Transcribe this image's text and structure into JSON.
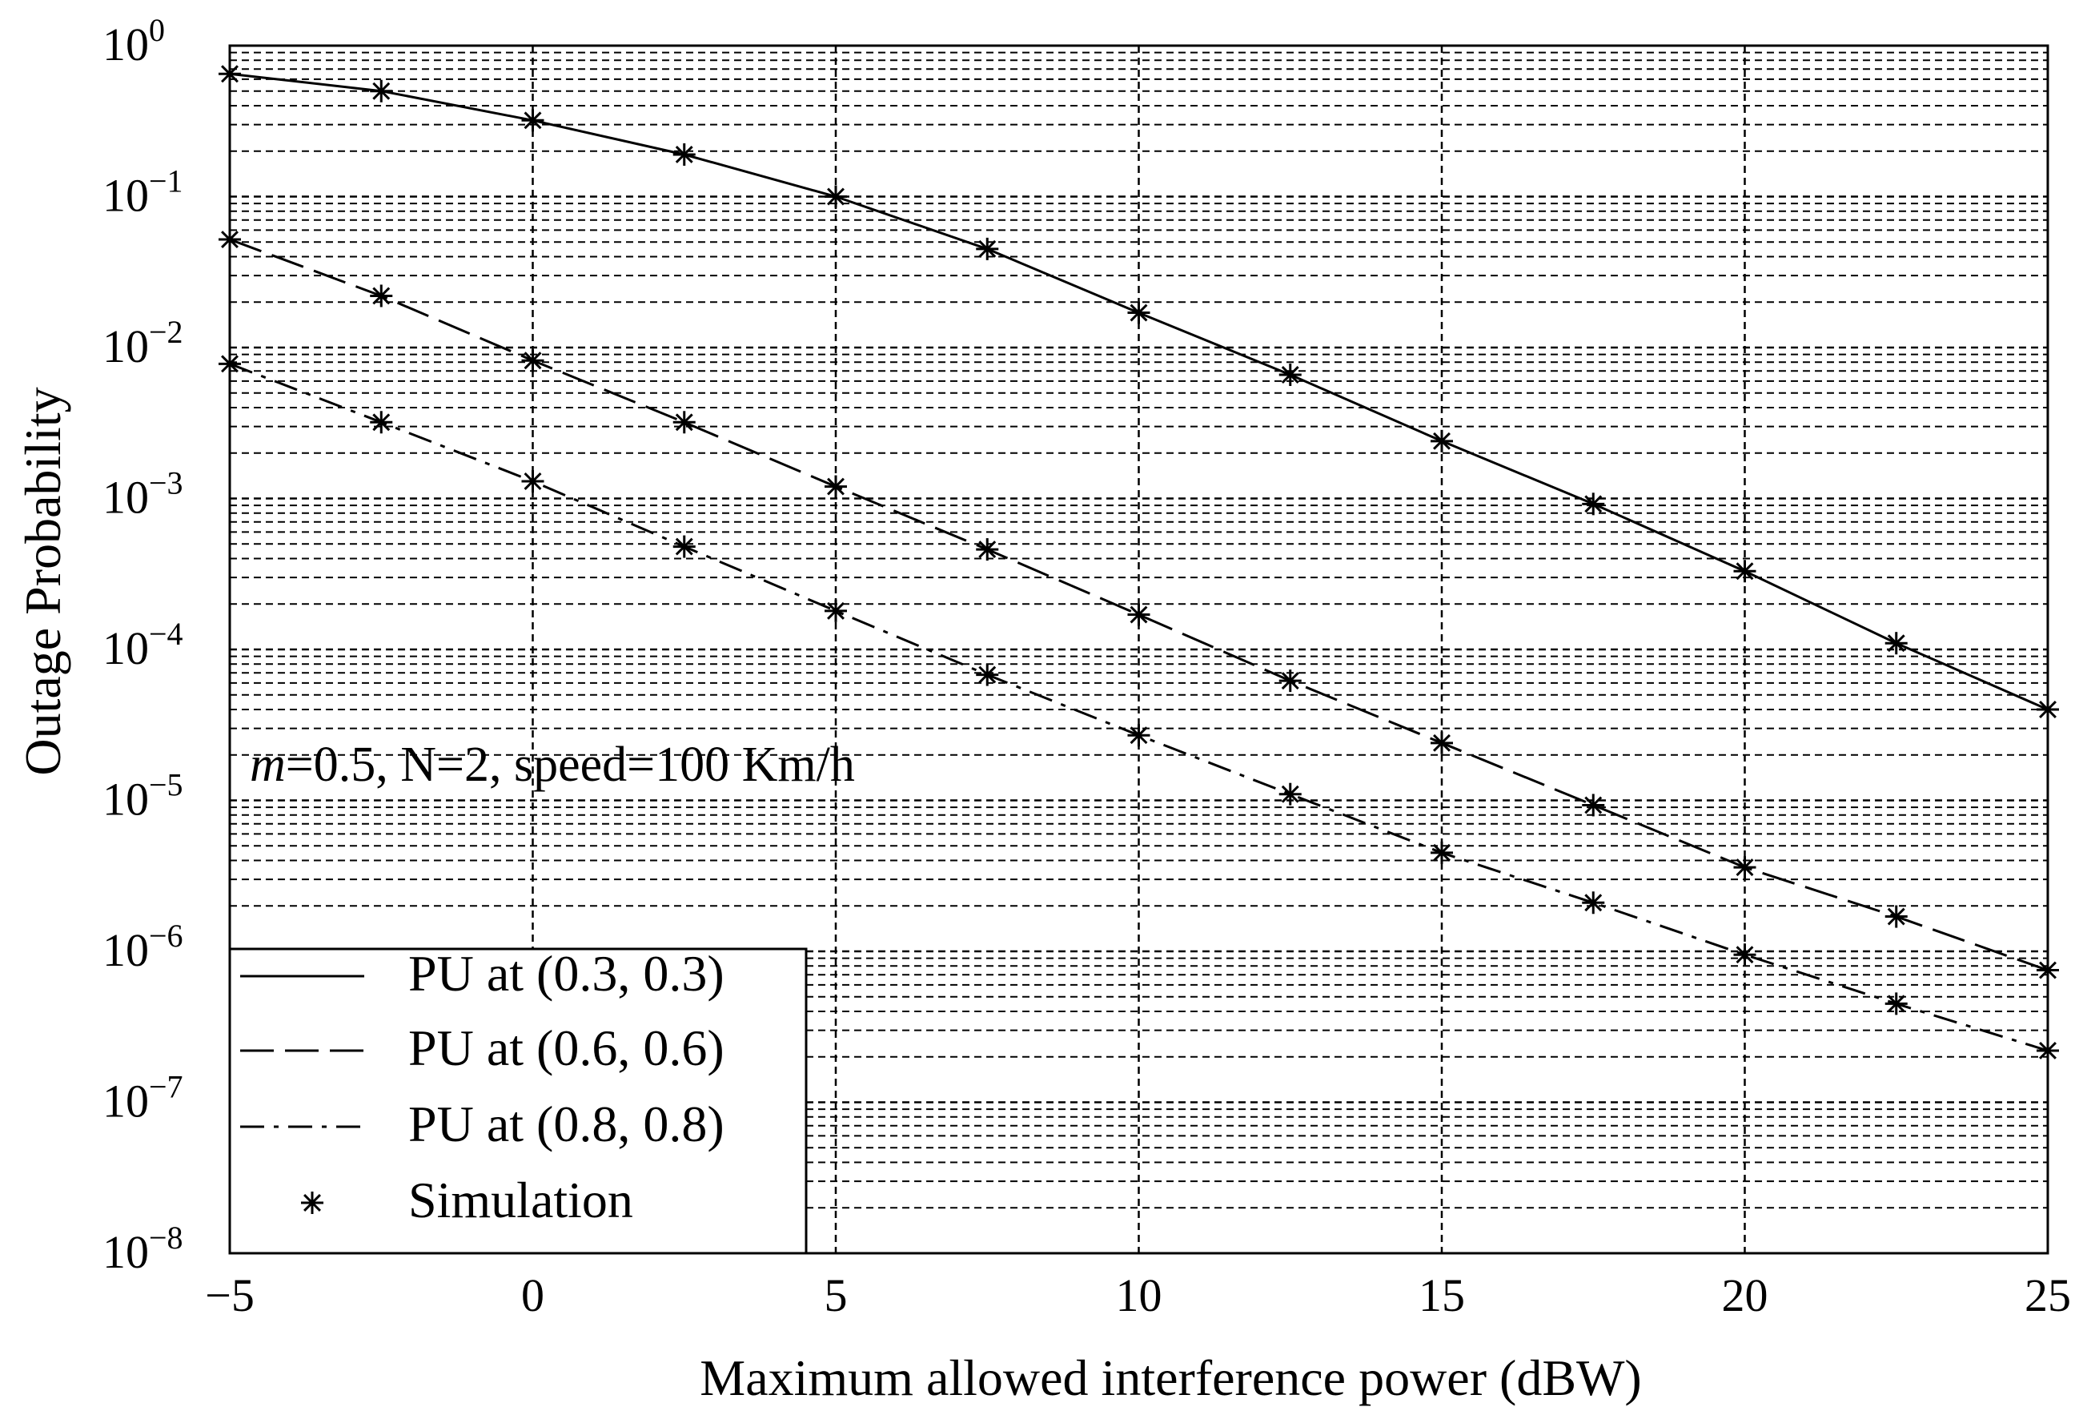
{
  "chart_data": {
    "type": "line",
    "xlabel": "Maximum allowed interference power (dBW)",
    "ylabel": "Outage Probability",
    "xlim": [
      -5,
      25
    ],
    "ylim": [
      1e-08,
      1
    ],
    "yscale": "log",
    "grid": true,
    "x_ticks": [
      -5,
      0,
      5,
      10,
      15,
      20,
      25
    ],
    "x_tick_labels": [
      "−5",
      "0",
      "5",
      "10",
      "15",
      "20",
      "25"
    ],
    "y_ticks": [
      {
        "base": "10",
        "exp": "0",
        "value": 1
      },
      {
        "base": "10",
        "exp": "−1",
        "value": 0.1
      },
      {
        "base": "10",
        "exp": "−2",
        "value": 0.01
      },
      {
        "base": "10",
        "exp": "−3",
        "value": 0.001
      },
      {
        "base": "10",
        "exp": "−4",
        "value": 0.0001
      },
      {
        "base": "10",
        "exp": "−5",
        "value": 1e-05
      },
      {
        "base": "10",
        "exp": "−6",
        "value": 1e-06
      },
      {
        "base": "10",
        "exp": "−7",
        "value": 1e-07
      },
      {
        "base": "10",
        "exp": "−8",
        "value": 1e-08
      }
    ],
    "annotation": {
      "italic": "m",
      "rest": "=0.5, N=2, speed=100 Km/h"
    },
    "legend_position": "bottom-left",
    "series": [
      {
        "name": "PU at (0.3, 0.3)",
        "style": "solid",
        "x": [
          -5,
          -2.5,
          0,
          2.5,
          5,
          7.5,
          10,
          12.5,
          15,
          17.5,
          20,
          22.5,
          25
        ],
        "values": [
          0.65,
          0.5,
          0.32,
          0.19,
          0.1,
          0.045,
          0.017,
          0.0066,
          0.0024,
          0.00092,
          0.00033,
          0.00011,
          4e-05
        ]
      },
      {
        "name": "PU at (0.6, 0.6)",
        "style": "dashed",
        "x": [
          -5,
          -2.5,
          0,
          2.5,
          5,
          7.5,
          10,
          12.5,
          15,
          17.5,
          20,
          22.5,
          25
        ],
        "values": [
          0.052,
          0.022,
          0.0082,
          0.0032,
          0.0012,
          0.00046,
          0.00017,
          6.2e-05,
          2.4e-05,
          9.3e-06,
          3.6e-06,
          1.7e-06,
          7.5e-07
        ]
      },
      {
        "name": "PU at (0.8, 0.8)",
        "style": "dashdot",
        "x": [
          -5,
          -2.5,
          0,
          2.5,
          5,
          7.5,
          10,
          12.5,
          15,
          17.5,
          20,
          22.5,
          25
        ],
        "values": [
          0.0078,
          0.0032,
          0.0013,
          0.00048,
          0.00018,
          6.8e-05,
          2.7e-05,
          1.1e-05,
          4.5e-06,
          2.1e-06,
          9.5e-07,
          4.5e-07,
          2.2e-07
        ]
      }
    ],
    "simulation_label": "Simulation",
    "simulation_marker": "asterisk"
  }
}
